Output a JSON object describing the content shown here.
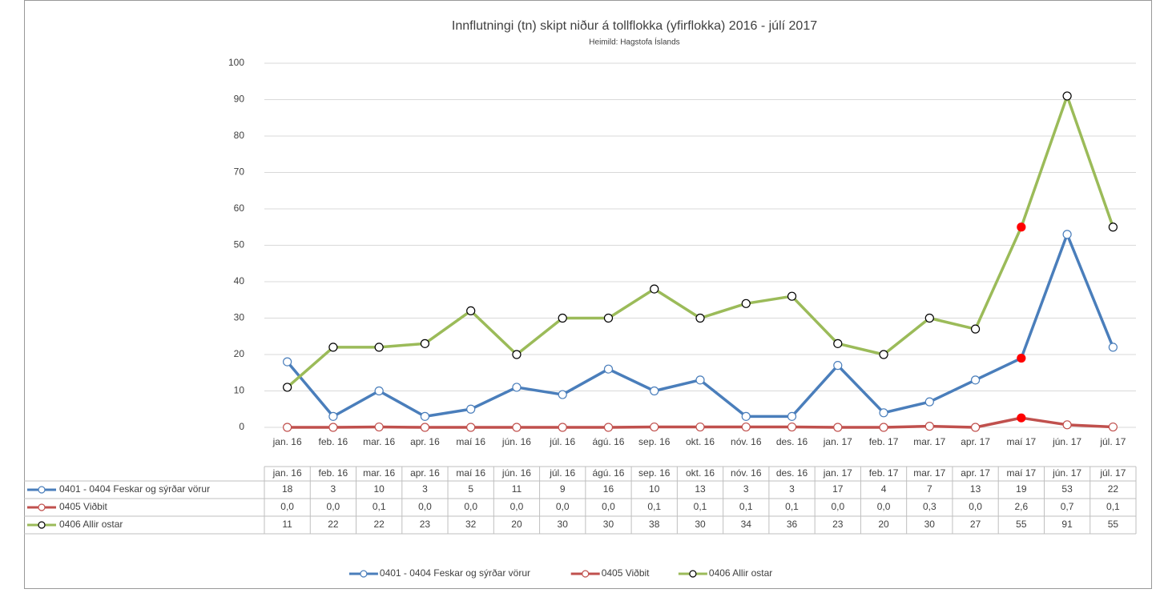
{
  "chart_data": {
    "type": "line",
    "title": "Innflutningi (tn) skipt niður á tollflokka (yfirflokka) 2016 - júlí 2017",
    "subtitle": "Heimild: Hagstofa Íslands",
    "categories": [
      "jan. 16",
      "feb. 16",
      "mar. 16",
      "apr. 16",
      "maí 16",
      "jún. 16",
      "júl. 16",
      "ágú. 16",
      "sep. 16",
      "okt. 16",
      "nóv. 16",
      "des. 16",
      "jan. 17",
      "feb. 17",
      "mar. 17",
      "apr. 17",
      "maí 17",
      "jún. 17",
      "júl. 17"
    ],
    "series": [
      {
        "name": "0401 - 0404 Feskar og sýrðar vörur",
        "color": "#4a7ebb",
        "marker_edge": "#4a7ebb",
        "values": [
          18,
          3,
          10,
          3,
          5,
          11,
          9,
          16,
          10,
          13,
          3,
          3,
          17,
          4,
          7,
          13,
          19,
          53,
          22
        ]
      },
      {
        "name": "0405 Viðbit",
        "color": "#c0504d",
        "marker_edge": "#c0504d",
        "values": [
          0.0,
          0.0,
          0.1,
          0.0,
          0.0,
          0.0,
          0.0,
          0.0,
          0.1,
          0.1,
          0.1,
          0.1,
          0.0,
          0.0,
          0.3,
          0.0,
          2.6,
          0.7,
          0.1
        ],
        "value_labels": [
          "0,0",
          "0,0",
          "0,1",
          "0,0",
          "0,0",
          "0,0",
          "0,0",
          "0,0",
          "0,1",
          "0,1",
          "0,1",
          "0,1",
          "0,0",
          "0,0",
          "0,3",
          "0,0",
          "2,6",
          "0,7",
          "0,1"
        ]
      },
      {
        "name": "0406 Allir ostar",
        "color": "#9bbb59",
        "marker_edge": "#000000",
        "values": [
          11,
          22,
          22,
          23,
          32,
          20,
          30,
          30,
          38,
          30,
          34,
          36,
          23,
          20,
          30,
          27,
          55,
          91,
          55
        ]
      }
    ],
    "highlight": {
      "index": 16,
      "color": "#ff0000"
    },
    "ylim": [
      0,
      100
    ],
    "yticks": [
      0,
      10,
      20,
      30,
      40,
      50,
      60,
      70,
      80,
      90,
      100
    ],
    "grid": true,
    "legend": "bottom"
  }
}
